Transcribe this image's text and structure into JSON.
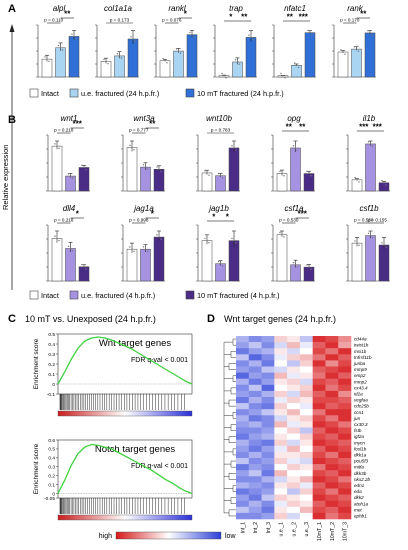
{
  "panel_letters": [
    "A",
    "B",
    "C",
    "D"
  ],
  "y_axis_label": "Relative expression",
  "legend_a": [
    {
      "label": "Intact",
      "color": "#ffffff"
    },
    {
      "label": "u.e. fractured (24 h.p.fr.)",
      "color": "#a9d4f2"
    },
    {
      "label": "10 mT fractured (24 h.p.fr.)",
      "color": "#2f6fd6"
    }
  ],
  "legend_b": [
    {
      "label": "Intact",
      "color": "#ffffff"
    },
    {
      "label": "u.e. fractured (4 h.p.fr.)",
      "color": "#a592e0"
    },
    {
      "label": "10 mT fractured (4 h.p.fr.)",
      "color": "#4a2c86"
    }
  ],
  "chart_data": [
    {
      "type": "bar",
      "panel": "A",
      "gene": "alpl",
      "categories": [
        "Intact",
        "u.e. fractured (24 h.p.fr.)",
        "10 mT fractured (24 h.p.fr.)"
      ],
      "values": [
        0.55,
        0.9,
        1.25
      ],
      "errors": [
        0.12,
        0.15,
        0.18
      ],
      "annotations": [
        "p = 0.110",
        "**"
      ]
    },
    {
      "type": "bar",
      "panel": "A",
      "gene": "col1a1a",
      "categories": [
        "Intact",
        "u.e. fractured (24 h.p.fr.)",
        "10 mT fractured (24 h.p.fr.)"
      ],
      "values": [
        0.55,
        0.75,
        1.35
      ],
      "errors": [
        0.12,
        0.15,
        0.3
      ],
      "annotations": [
        "p = 0.173"
      ]
    },
    {
      "type": "bar",
      "panel": "A",
      "gene": "rankl",
      "categories": [
        "Intact",
        "u.e. fractured (24 h.p.fr.)",
        "10 mT fractured (24 h.p.fr.)"
      ],
      "values": [
        0.6,
        0.95,
        1.55
      ],
      "errors": [
        0.05,
        0.1,
        0.15
      ],
      "annotations": [
        "p = 0.076",
        "*"
      ]
    },
    {
      "type": "bar",
      "panel": "A",
      "gene": "trap",
      "categories": [
        "Intact",
        "u.e. fractured (24 h.p.fr.)",
        "10 mT fractured (24 h.p.fr.)"
      ],
      "values": [
        0.05,
        0.55,
        1.45
      ],
      "errors": [
        0.02,
        0.15,
        0.25
      ],
      "annotations": [
        "*",
        "**"
      ]
    },
    {
      "type": "bar",
      "panel": "A",
      "gene": "nfatc1",
      "categories": [
        "Intact",
        "u.e. fractured (24 h.p.fr.)",
        "10 mT fractured (24 h.p.fr.)"
      ],
      "values": [
        0.05,
        0.45,
        1.7
      ],
      "errors": [
        0.01,
        0.05,
        0.08
      ],
      "annotations": [
        "**",
        "***"
      ]
    },
    {
      "type": "bar",
      "panel": "A",
      "gene": "rank",
      "categories": [
        "Intact",
        "u.e. fractured (24 h.p.fr.)",
        "10 mT fractured (24 h.p.fr.)"
      ],
      "values": [
        0.85,
        0.95,
        1.5
      ],
      "errors": [
        0.05,
        0.08,
        0.08
      ],
      "annotations": [
        "p = 0.170",
        "**"
      ]
    },
    {
      "type": "bar",
      "panel": "B",
      "gene": "wnt1",
      "categories": [
        "Intact",
        "u.e. fractured (4 h.p.fr.)",
        "10 mT fractured (4 h.p.fr.)"
      ],
      "values": [
        1.05,
        0.35,
        0.55
      ],
      "errors": [
        0.12,
        0.06,
        0.05
      ],
      "annotations": [
        "p = 0.218",
        "***"
      ]
    },
    {
      "type": "bar",
      "panel": "B",
      "gene": "wnt3a",
      "categories": [
        "Intact",
        "u.e. fractured (4 h.p.fr.)",
        "10 mT fractured (4 h.p.fr.)"
      ],
      "values": [
        1.0,
        0.55,
        0.5
      ],
      "errors": [
        0.15,
        0.1,
        0.08
      ],
      "annotations": [
        "p = 0.777",
        "**"
      ]
    },
    {
      "type": "bar",
      "panel": "B",
      "gene": "wnt10b",
      "categories": [
        "Intact",
        "u.e. fractured (4 h.p.fr.)",
        "10 mT fractured (4 h.p.fr.)"
      ],
      "values": [
        0.65,
        0.55,
        1.55
      ],
      "errors": [
        0.1,
        0.08,
        0.25
      ],
      "annotations": [
        "p = 0.783"
      ]
    },
    {
      "type": "bar",
      "panel": "B",
      "gene": "opg",
      "categories": [
        "Intact",
        "u.e. fractured (4 h.p.fr.)",
        "10 mT fractured (4 h.p.fr.)"
      ],
      "values": [
        0.75,
        1.85,
        0.75
      ],
      "errors": [
        0.15,
        0.3,
        0.1
      ],
      "annotations": [
        "**",
        "**"
      ]
    },
    {
      "type": "bar",
      "panel": "B",
      "gene": "il1b",
      "categories": [
        "Intact",
        "u.e. fractured (4 h.p.fr.)",
        "10 mT fractured (4 h.p.fr.)"
      ],
      "values": [
        0.95,
        4.0,
        0.7
      ],
      "errors": [
        0.1,
        0.25,
        0.12
      ],
      "annotations": [
        "***",
        "***"
      ]
    },
    {
      "type": "bar",
      "panel": "B",
      "gene": "dll4",
      "categories": [
        "Intact",
        "u.e. fractured (4 h.p.fr.)",
        "10 mT fractured (4 h.p.fr.)"
      ],
      "values": [
        1.05,
        0.8,
        0.35
      ],
      "errors": [
        0.18,
        0.15,
        0.05
      ],
      "annotations": [
        "p = 0.218",
        "*"
      ]
    },
    {
      "type": "bar",
      "panel": "B",
      "gene": "jag1a",
      "categories": [
        "Intact",
        "u.e. fractured (4 h.p.fr.)",
        "10 mT fractured (4 h.p.fr.)"
      ],
      "values": [
        1.05,
        1.05,
        1.45
      ],
      "errors": [
        0.2,
        0.15,
        0.2
      ],
      "annotations": [
        "p = 0.998",
        "*"
      ]
    },
    {
      "type": "bar",
      "panel": "B",
      "gene": "jag1b",
      "categories": [
        "Intact",
        "u.e. fractured (4 h.p.fr.)",
        "10 mT fractured (4 h.p.fr.)"
      ],
      "values": [
        1.05,
        0.45,
        1.05
      ],
      "errors": [
        0.15,
        0.08,
        0.25
      ],
      "annotations": [
        "*",
        "*"
      ]
    },
    {
      "type": "bar",
      "panel": "B",
      "gene": "csf1a",
      "categories": [
        "Intact",
        "u.e. fractured (4 h.p.fr.)",
        "10 mT fractured (4 h.p.fr.)"
      ],
      "values": [
        1.0,
        0.35,
        0.3
      ],
      "errors": [
        0.08,
        0.1,
        0.06
      ],
      "annotations": [
        "p = 0.530",
        "***"
      ]
    },
    {
      "type": "bar",
      "panel": "B",
      "gene": "csf1b",
      "categories": [
        "Intact",
        "u.e. fractured (4 h.p.fr.)",
        "10 mT fractured (4 h.p.fr.)"
      ],
      "values": [
        1.0,
        1.2,
        0.95
      ],
      "errors": [
        0.15,
        0.12,
        0.2
      ],
      "annotations": [
        "p = 0.538",
        "p = 0.155"
      ]
    },
    {
      "type": "line",
      "panel": "C",
      "title": "10 mT vs. Unexposed (24 h.p.fr.)",
      "subtitle": "Wnt target genes",
      "fdr": "FDR q-val < 0.001",
      "ylabel": "Enrichment score",
      "ylim": [
        -0.1,
        0.5
      ],
      "yticks": [
        "0.5",
        "0.4",
        "0.3",
        "0.2",
        "0.1",
        "0",
        "-0.1"
      ],
      "x": [
        0,
        5,
        10,
        15,
        20,
        25,
        30,
        35,
        40,
        45,
        50,
        55,
        60,
        65,
        70,
        75,
        80,
        85,
        90,
        95,
        100
      ],
      "y": [
        0,
        0.12,
        0.25,
        0.36,
        0.43,
        0.46,
        0.47,
        0.46,
        0.44,
        0.41,
        0.38,
        0.35,
        0.31,
        0.27,
        0.23,
        0.19,
        0.15,
        0.11,
        0.07,
        0.03,
        0
      ]
    },
    {
      "type": "line",
      "panel": "C",
      "subtitle": "Notch target genes",
      "fdr": "FDR q-val < 0.001",
      "ylabel": "Enrichment score",
      "ylim": [
        -0.05,
        0.6
      ],
      "yticks": [
        "0.6",
        "0.5",
        "0.4",
        "0.3",
        "0.2",
        "0.1",
        "0",
        "-0.05"
      ],
      "x": [
        0,
        5,
        10,
        15,
        20,
        25,
        30,
        35,
        40,
        45,
        50,
        55,
        60,
        65,
        70,
        75,
        80,
        85,
        90,
        95,
        100
      ],
      "y": [
        0,
        0.15,
        0.32,
        0.45,
        0.52,
        0.55,
        0.54,
        0.52,
        0.5,
        0.46,
        0.42,
        0.38,
        0.34,
        0.3,
        0.26,
        0.21,
        0.16,
        0.12,
        0.07,
        0.03,
        0
      ]
    },
    {
      "type": "heatmap",
      "panel": "D",
      "title": "Wnt target genes (24 h.p.fr.)",
      "columns": [
        "Int_1",
        "Int_2",
        "Int_3",
        "u.e._1",
        "u.e._2",
        "u.e._3",
        "10mT_1",
        "10mT_2",
        "10mT_3"
      ],
      "rows": [
        "cd44a",
        "twist1b",
        "msi1b",
        "tnfrsf11b",
        "junba",
        "mmp9",
        "emp2",
        "mmp2",
        "cx43.4",
        "id2a",
        "vegfaa",
        "cdc25b",
        "ccn1",
        "jun",
        "cx30.3",
        "fstb",
        "igf2a",
        "mycn",
        "fosl1b",
        "dkk1a",
        "pou5f3",
        "mitfa",
        "dkk3b",
        "nkx2.2b",
        "edn1",
        "eda",
        "dkk2",
        "atoh1a",
        "met",
        "ephb1"
      ],
      "color_scale": {
        "high": "#d7191c",
        "mid": "#ffffff",
        "low": "#2c3fd8",
        "labels": [
          "high",
          "low"
        ]
      },
      "values": [
        [
          -0.4,
          -0.6,
          -0.5,
          0.2,
          0.1,
          -0.3,
          0.9,
          0.8,
          0.5
        ],
        [
          -0.5,
          -0.3,
          -0.6,
          -0.2,
          0.3,
          -0.1,
          0.7,
          0.9,
          0.4
        ],
        [
          -0.7,
          -0.5,
          -0.4,
          0.1,
          -0.2,
          0.0,
          0.8,
          0.6,
          0.9
        ],
        [
          -0.3,
          -0.8,
          -0.6,
          -0.1,
          0.2,
          0.3,
          0.6,
          0.9,
          0.7
        ],
        [
          -0.6,
          -0.4,
          -0.7,
          0.0,
          -0.3,
          0.2,
          0.9,
          0.5,
          0.8
        ],
        [
          -0.5,
          -0.6,
          -0.3,
          -0.2,
          0.1,
          0.0,
          0.7,
          0.8,
          0.9
        ],
        [
          -0.8,
          -0.5,
          -0.6,
          0.3,
          -0.1,
          0.1,
          0.6,
          0.9,
          0.7
        ],
        [
          -0.4,
          -0.7,
          -0.5,
          0.1,
          0.2,
          -0.2,
          0.8,
          0.7,
          0.9
        ],
        [
          -0.6,
          -0.3,
          -0.8,
          0.0,
          0.1,
          0.2,
          0.9,
          0.6,
          0.8
        ],
        [
          -0.5,
          -0.6,
          -0.4,
          0.2,
          -0.2,
          0.3,
          0.7,
          0.9,
          0.5
        ],
        [
          -0.7,
          -0.4,
          -0.6,
          -0.1,
          0.2,
          0.1,
          0.8,
          0.8,
          0.7
        ],
        [
          -0.3,
          -0.6,
          -0.7,
          0.2,
          0.0,
          -0.1,
          0.9,
          0.7,
          0.8
        ],
        [
          -0.6,
          -0.5,
          -0.3,
          0.1,
          0.3,
          0.0,
          0.6,
          0.9,
          0.9
        ],
        [
          -0.4,
          -0.7,
          -0.6,
          -0.2,
          0.1,
          0.2,
          0.8,
          0.6,
          0.9
        ],
        [
          -0.5,
          -0.4,
          -0.6,
          0.3,
          -0.1,
          0.1,
          0.9,
          0.8,
          0.6
        ],
        [
          -0.6,
          -0.6,
          -0.5,
          0.0,
          0.2,
          -0.3,
          0.7,
          0.9,
          0.8
        ],
        [
          -0.7,
          -0.5,
          -0.4,
          0.1,
          0.0,
          0.2,
          0.8,
          0.7,
          0.9
        ],
        [
          -0.4,
          -0.6,
          -0.7,
          0.2,
          -0.2,
          0.1,
          0.9,
          0.8,
          0.7
        ],
        [
          -0.5,
          -0.7,
          -0.5,
          -0.1,
          0.3,
          0.0,
          0.7,
          0.9,
          0.8
        ],
        [
          -0.6,
          -0.4,
          -0.6,
          0.1,
          0.1,
          0.2,
          0.8,
          0.6,
          0.9
        ],
        [
          -0.3,
          -0.6,
          -0.5,
          0.2,
          -0.1,
          -0.2,
          0.9,
          0.8,
          0.7
        ],
        [
          -0.7,
          -0.5,
          -0.6,
          0.0,
          0.2,
          0.1,
          0.6,
          0.9,
          0.8
        ],
        [
          -0.5,
          -0.3,
          -0.7,
          0.3,
          0.0,
          0.0,
          0.8,
          0.7,
          0.9
        ],
        [
          -0.6,
          -0.6,
          -0.4,
          -0.2,
          0.1,
          0.3,
          0.9,
          0.8,
          0.6
        ],
        [
          -0.4,
          -0.5,
          -0.6,
          0.1,
          0.2,
          -0.1,
          0.7,
          0.9,
          0.8
        ],
        [
          -0.7,
          -0.6,
          -0.5,
          0.0,
          -0.3,
          0.2,
          0.8,
          0.6,
          0.9
        ],
        [
          -0.5,
          -0.7,
          -0.3,
          0.2,
          0.1,
          0.0,
          0.9,
          0.8,
          0.7
        ],
        [
          -0.6,
          -0.4,
          -0.6,
          -0.1,
          0.2,
          0.1,
          0.7,
          0.9,
          0.8
        ],
        [
          -0.3,
          -0.5,
          -0.7,
          0.1,
          0.0,
          0.3,
          0.8,
          0.7,
          0.9
        ],
        [
          -0.6,
          -0.6,
          -0.5,
          0.2,
          -0.2,
          0.0,
          0.9,
          0.6,
          0.8
        ]
      ]
    }
  ]
}
